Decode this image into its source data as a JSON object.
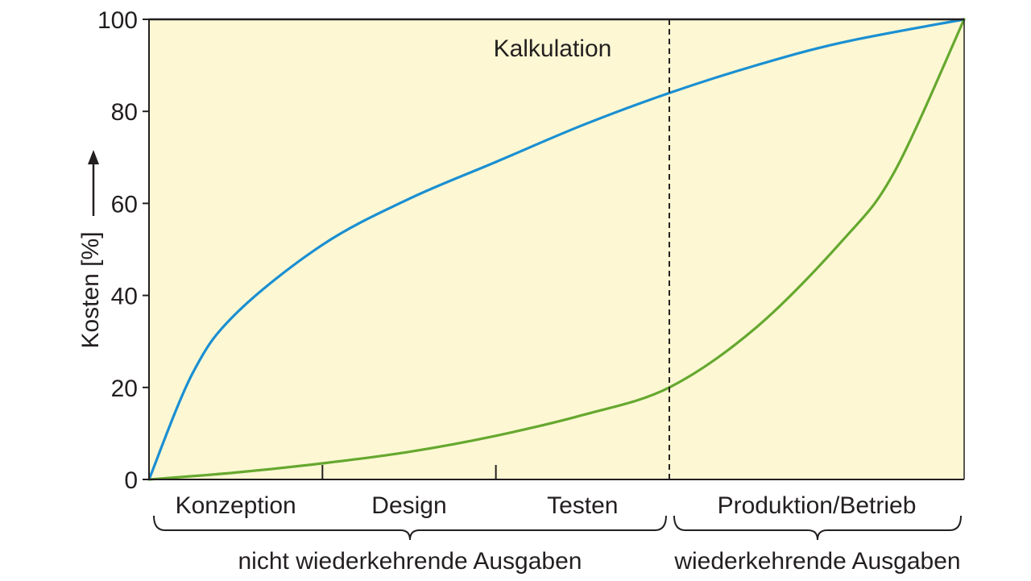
{
  "chart_data": {
    "type": "line",
    "title": "",
    "xlabel": "",
    "ylabel": "Kosten [%]",
    "ylim": [
      0,
      100
    ],
    "xlim": [
      0,
      4.7
    ],
    "y_ticks": [
      "0",
      "20",
      "40",
      "60",
      "80",
      "100"
    ],
    "y_tick_values": [
      0,
      20,
      40,
      60,
      80,
      100
    ],
    "phases": [
      {
        "label": "Konzeption",
        "start": 0,
        "end": 1
      },
      {
        "label": "Design",
        "start": 1,
        "end": 2
      },
      {
        "label": "Testen",
        "start": 2,
        "end": 3
      },
      {
        "label": "Produktion/Betrieb",
        "start": 3,
        "end": 4.7
      }
    ],
    "groups": [
      {
        "label": "nicht wiederkehrende Ausgaben",
        "start": 0,
        "end": 3
      },
      {
        "label": "wiederkehrende Ausgaben",
        "start": 3,
        "end": 4.7
      }
    ],
    "divider_x": 3,
    "divider_label": "Kalkulation",
    "series": [
      {
        "color": "#1b8fd2",
        "x": [
          0,
          0.25,
          0.5,
          1.0,
          1.5,
          2.0,
          2.5,
          3.0,
          3.5,
          4.0,
          4.7
        ],
        "y": [
          0,
          23,
          36,
          51,
          61,
          69,
          77,
          84,
          90,
          95,
          100
        ]
      },
      {
        "color": "#66a82f",
        "x": [
          0,
          0.5,
          1.0,
          1.5,
          2.0,
          2.5,
          3.0,
          3.5,
          4.0,
          4.3,
          4.7
        ],
        "y": [
          0,
          1.5,
          3.5,
          6,
          9.5,
          14,
          20,
          33,
          52,
          67,
          100
        ]
      }
    ],
    "background_color": "#fdf8d3",
    "grid": false
  }
}
